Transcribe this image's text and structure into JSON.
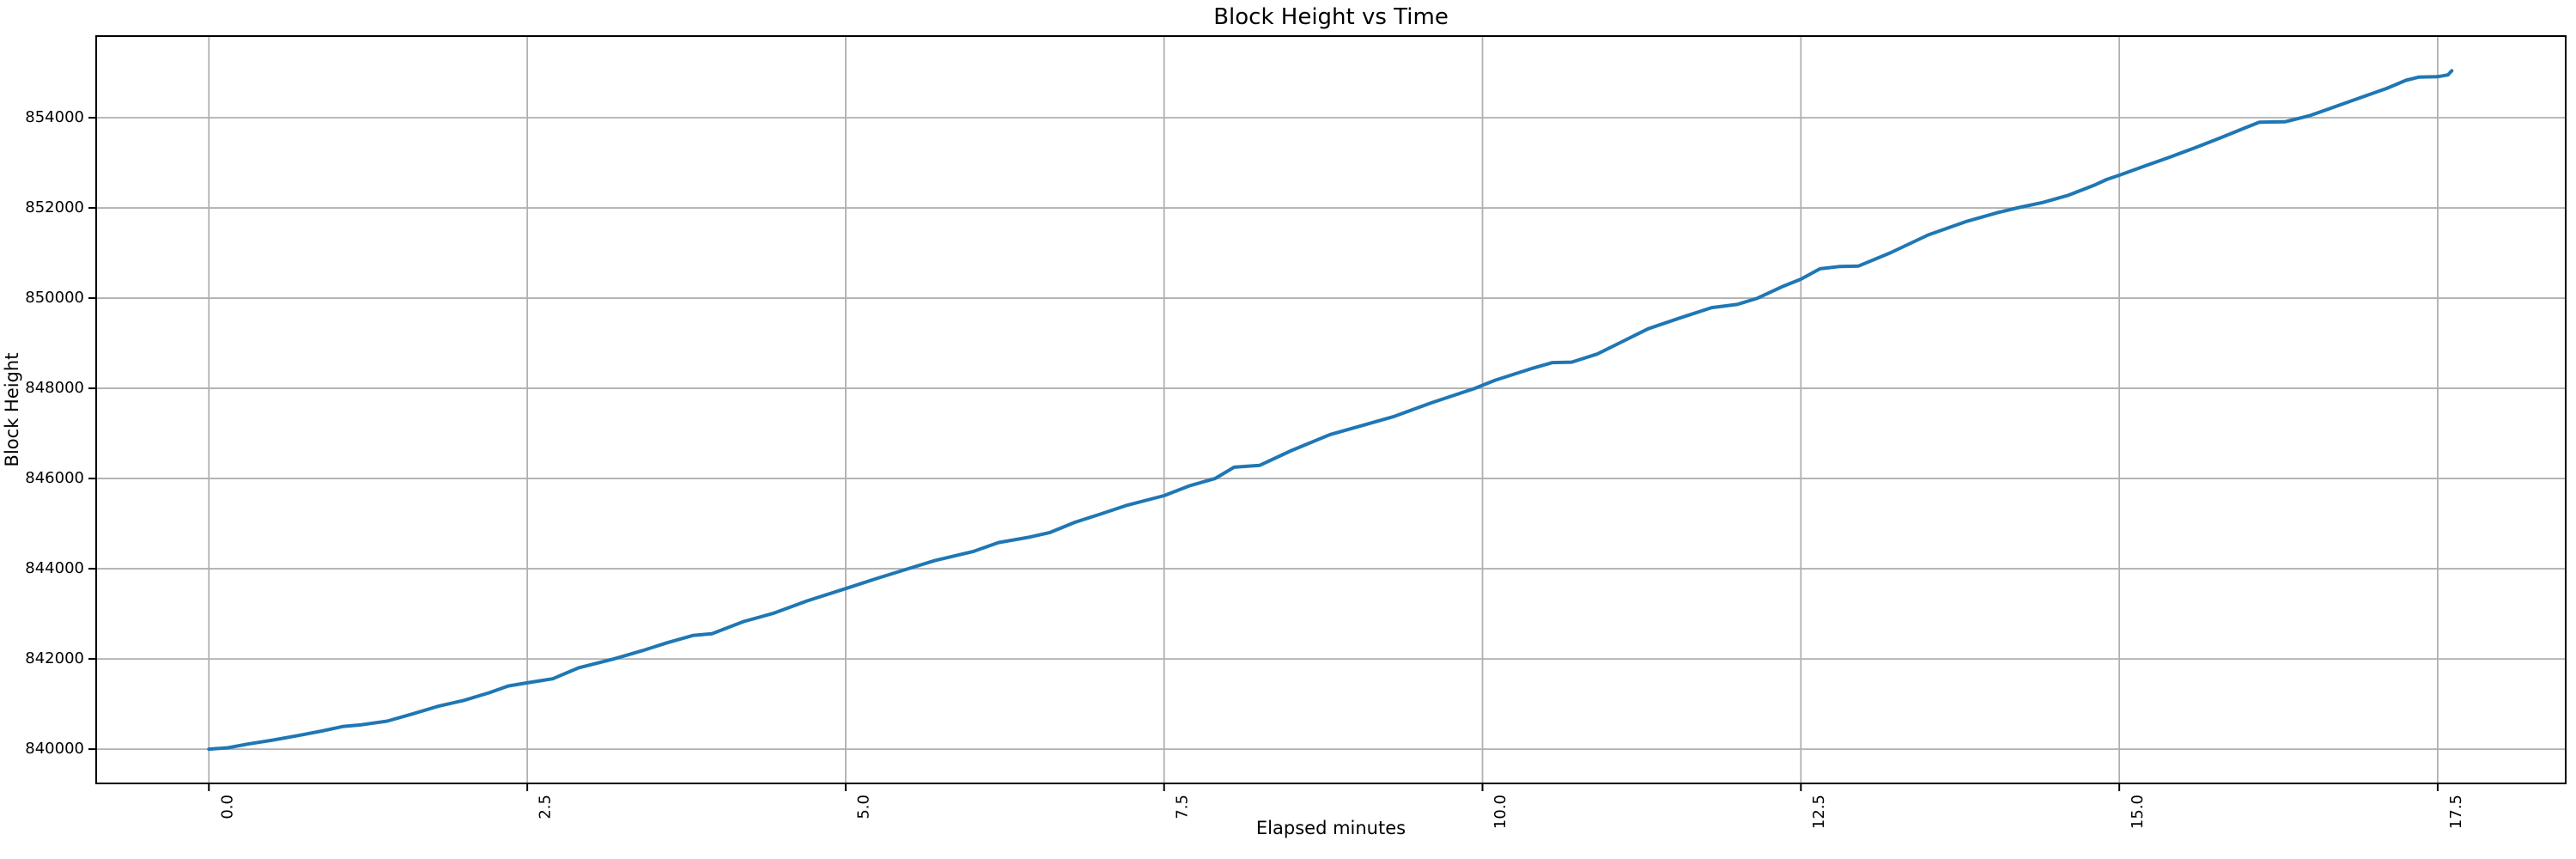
{
  "chart_data": {
    "type": "line",
    "title": "Block Height vs Time",
    "xlabel": "Elapsed minutes",
    "ylabel": "Block Height",
    "grid": true,
    "legend": "none",
    "colors": {
      "line": "#1f77b4",
      "grid": "#b0b0b0",
      "spine": "#000000",
      "background": "#ffffff",
      "text": "#000000"
    },
    "xlim": [
      -0.885,
      18.505
    ],
    "ylim": [
      839240,
      855810
    ],
    "x_ticks": [
      0.0,
      2.5,
      5.0,
      7.5,
      10.0,
      12.5,
      15.0,
      17.5
    ],
    "x_tick_labels": [
      "0.0",
      "2.5",
      "5.0",
      "7.5",
      "10.0",
      "12.5",
      "15.0",
      "17.5"
    ],
    "x_tick_rotation_deg": 90,
    "y_ticks": [
      840000,
      842000,
      844000,
      846000,
      848000,
      850000,
      852000,
      854000
    ],
    "y_tick_labels": [
      "840000",
      "842000",
      "844000",
      "846000",
      "848000",
      "850000",
      "852000",
      "854000"
    ],
    "series": [
      {
        "name": "block-height",
        "x": [
          0.0,
          0.15,
          0.3,
          0.5,
          0.7,
          0.9,
          1.05,
          1.2,
          1.4,
          1.6,
          1.8,
          2.0,
          2.2,
          2.35,
          2.5,
          2.7,
          2.9,
          3.18,
          3.4,
          3.6,
          3.8,
          3.95,
          4.2,
          4.43,
          4.7,
          5.0,
          5.25,
          5.49,
          5.7,
          6.0,
          6.2,
          6.45,
          6.6,
          6.8,
          7.0,
          7.2,
          7.5,
          7.7,
          7.9,
          8.05,
          8.25,
          8.5,
          8.8,
          9.0,
          9.3,
          9.6,
          9.94,
          10.1,
          10.4,
          10.55,
          10.7,
          10.9,
          11.1,
          11.3,
          11.55,
          11.8,
          12.0,
          12.16,
          12.35,
          12.5,
          12.65,
          12.8,
          12.95,
          13.2,
          13.5,
          13.8,
          14.05,
          14.2,
          14.4,
          14.6,
          14.8,
          14.9,
          15.0,
          15.2,
          15.4,
          15.6,
          15.8,
          16.0,
          16.1,
          16.3,
          16.5,
          16.7,
          16.9,
          17.1,
          17.25,
          17.35,
          17.5,
          17.58,
          17.61
        ],
        "y": [
          840000,
          840030,
          840110,
          840200,
          840300,
          840410,
          840500,
          840540,
          840620,
          840780,
          840950,
          841080,
          841250,
          841400,
          841470,
          841560,
          841800,
          842000,
          842180,
          842360,
          842520,
          842560,
          842830,
          843010,
          843290,
          843560,
          843790,
          844000,
          844180,
          844380,
          844580,
          844705,
          844800,
          845030,
          845210,
          845400,
          845620,
          845840,
          846000,
          846250,
          846290,
          846620,
          846970,
          847130,
          847370,
          847680,
          848000,
          848180,
          848450,
          848570,
          848580,
          848760,
          849040,
          849320,
          849560,
          849790,
          849860,
          850000,
          850250,
          850420,
          850650,
          850700,
          850710,
          851000,
          851400,
          851700,
          851900,
          852000,
          852120,
          852280,
          852500,
          852630,
          852725,
          852930,
          853130,
          853340,
          853560,
          853790,
          853900,
          853910,
          854050,
          854250,
          854450,
          854650,
          854830,
          854900,
          854910,
          854950,
          855040
        ]
      }
    ]
  }
}
